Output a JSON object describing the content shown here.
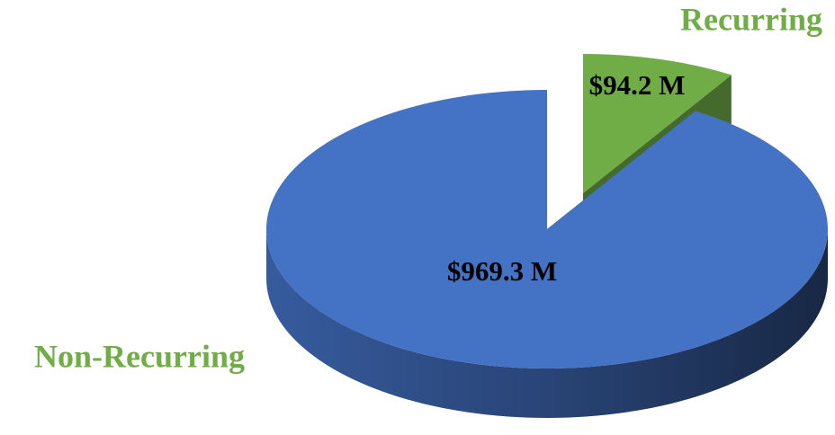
{
  "chart_data": {
    "type": "pie",
    "categories": [
      "Recurring",
      "Non-Recurring"
    ],
    "values": [
      94.2,
      969.3
    ],
    "value_labels": [
      "$94.2 M",
      "$969.3 M"
    ],
    "colors": [
      "#70ad47",
      "#4472c4"
    ]
  }
}
